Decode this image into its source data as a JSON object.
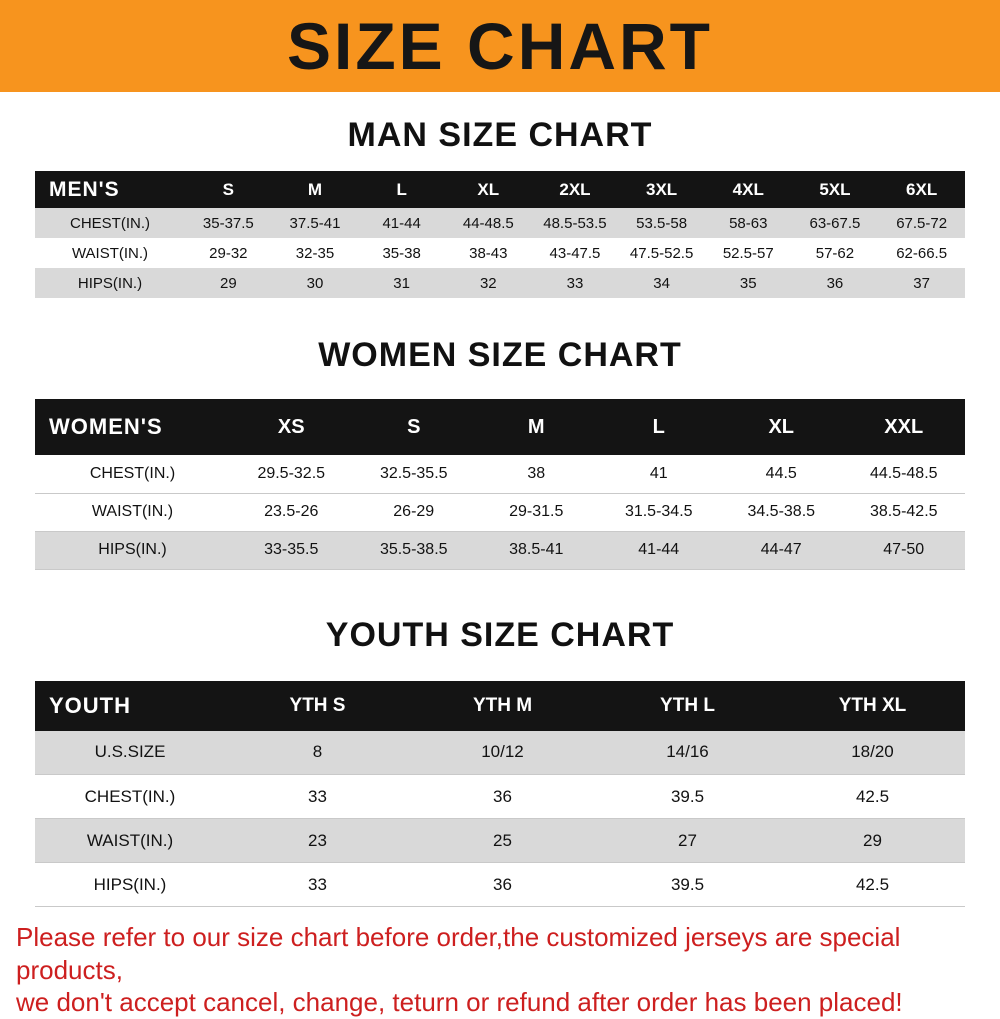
{
  "banner": {
    "title": "SIZE CHART",
    "bg": "#f7941e"
  },
  "chart_data": [
    {
      "type": "table",
      "title": "MAN SIZE CHART",
      "header": [
        "MEN'S",
        "S",
        "M",
        "L",
        "XL",
        "2XL",
        "3XL",
        "4XL",
        "5XL",
        "6XL"
      ],
      "rows": [
        {
          "label": "CHEST(IN.)",
          "values": [
            "35-37.5",
            "37.5-41",
            "41-44",
            "44-48.5",
            "48.5-53.5",
            "53.5-58",
            "58-63",
            "63-67.5",
            "67.5-72"
          ]
        },
        {
          "label": "WAIST(IN.)",
          "values": [
            "29-32",
            "32-35",
            "35-38",
            "38-43",
            "43-47.5",
            "47.5-52.5",
            "52.5-57",
            "57-62",
            "62-66.5"
          ]
        },
        {
          "label": "HIPS(IN.)",
          "values": [
            "29",
            "30",
            "31",
            "32",
            "33",
            "34",
            "35",
            "36",
            "37"
          ]
        }
      ]
    },
    {
      "type": "table",
      "title": "WOMEN SIZE CHART",
      "header": [
        "WOMEN'S",
        "XS",
        "S",
        "M",
        "L",
        "XL",
        "XXL"
      ],
      "rows": [
        {
          "label": "CHEST(IN.)",
          "values": [
            "29.5-32.5",
            "32.5-35.5",
            "38",
            "41",
            "44.5",
            "44.5-48.5"
          ]
        },
        {
          "label": "WAIST(IN.)",
          "values": [
            "23.5-26",
            "26-29",
            "29-31.5",
            "31.5-34.5",
            "34.5-38.5",
            "38.5-42.5"
          ]
        },
        {
          "label": "HIPS(IN.)",
          "values": [
            "33-35.5",
            "35.5-38.5",
            "38.5-41",
            "41-44",
            "44-47",
            "47-50"
          ]
        }
      ]
    },
    {
      "type": "table",
      "title": "YOUTH SIZE CHART",
      "header": [
        "YOUTH",
        "YTH S",
        "YTH M",
        "YTH L",
        "YTH XL"
      ],
      "rows": [
        {
          "label": "U.S.SIZE",
          "values": [
            "8",
            "10/12",
            "14/16",
            "18/20"
          ]
        },
        {
          "label": "CHEST(IN.)",
          "values": [
            "33",
            "36",
            "39.5",
            "42.5"
          ]
        },
        {
          "label": "WAIST(IN.)",
          "values": [
            "23",
            "25",
            "27",
            "29"
          ]
        },
        {
          "label": "HIPS(IN.)",
          "values": [
            "33",
            "36",
            "39.5",
            "42.5"
          ]
        }
      ]
    }
  ],
  "footer": {
    "line1": "Please refer to our size chart before order,the customized jerseys are special products,",
    "line2": "we don't accept cancel, change, teturn or refund after order has been placed!",
    "color": "#cd1f1f"
  }
}
